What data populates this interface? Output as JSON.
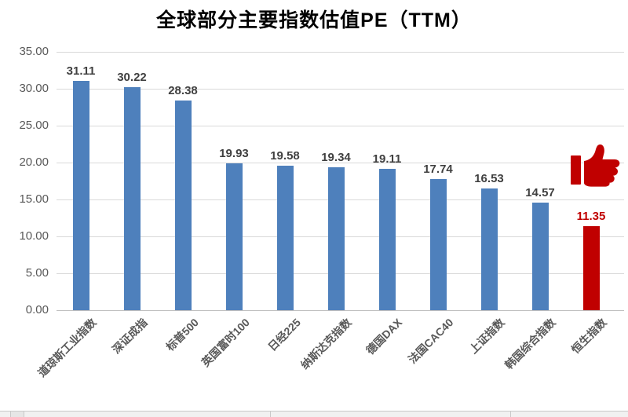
{
  "chart_data": {
    "type": "bar",
    "title": "全球部分主要指数估值PE（TTM）",
    "categories": [
      "道琼斯工业指数",
      "深证成指",
      "标普500",
      "英国富时100",
      "日经225",
      "纳斯达克指数",
      "德国DAX",
      "法国CAC40",
      "上证指数",
      "韩国综合指数",
      "恒生指数"
    ],
    "values": [
      31.11,
      30.22,
      28.38,
      19.93,
      19.58,
      19.34,
      19.11,
      17.74,
      16.53,
      14.57,
      11.35
    ],
    "value_labels": [
      "31.11",
      "30.22",
      "28.38",
      "19.93",
      "19.58",
      "19.34",
      "19.11",
      "17.74",
      "16.53",
      "14.57",
      "11.35"
    ],
    "highlight_index": 10,
    "xlabel": "",
    "ylabel": "",
    "ylim": [
      0,
      35
    ],
    "ytick_step": 5,
    "ytick_decimals": 2,
    "grid": true,
    "legend": false,
    "annotations": [
      {
        "name": "thumbs-up-icon",
        "meaning": "highlight of lowest PE index (恒生指数)",
        "color": "#c00000"
      }
    ]
  },
  "colors": {
    "bar": "#4e80bc",
    "highlight": "#c00000",
    "value_label": "#404040",
    "highlight_value_label": "#c00000",
    "axis_text": "#595959",
    "gridline": "#d9d9d9",
    "axis_line": "#bfbfbf",
    "title": "#000000"
  }
}
